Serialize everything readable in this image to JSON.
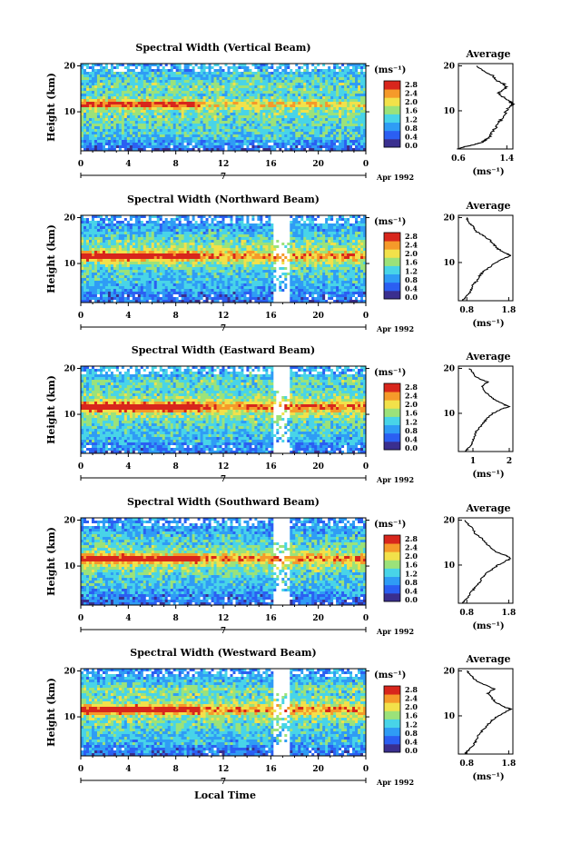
{
  "figure": {
    "xlabel": "Local Time",
    "date_label": "Apr 1992",
    "day_label": "7",
    "unit": "(ms⁻¹)",
    "ylabel": "Height (km)",
    "profile_title": "Average",
    "profile_unit": "(ms⁻¹)",
    "colorbar_ticks": [
      "0.0",
      "0.4",
      "0.8",
      "1.2",
      "1.6",
      "2.0",
      "2.4",
      "2.8"
    ],
    "colors": {
      "colormap": [
        "#3a2f8f",
        "#2b5ff2",
        "#2f9cf5",
        "#48d4e8",
        "#9be27a",
        "#f2e14a",
        "#f59a2a",
        "#d8261c"
      ],
      "missing": "#ffffff"
    }
  },
  "chart_data": [
    {
      "type": "heatmap",
      "title": "Spectral Width (Vertical Beam)",
      "x_ticks": [
        "0",
        "4",
        "8",
        "12",
        "16",
        "20",
        "0"
      ],
      "y_ticks": [
        "20",
        "10"
      ],
      "xlim": [
        0,
        24
      ],
      "ylim": [
        1.5,
        20.5
      ],
      "value_range": [
        0,
        3.0
      ],
      "profile": {
        "title": "Average",
        "x_ticks": [
          "0.6",
          "1.4"
        ],
        "xlim": [
          0.6,
          1.5
        ],
        "heights": [
          1.5,
          2,
          2.5,
          3,
          3.5,
          4,
          5,
          6,
          7,
          8,
          9,
          10,
          11,
          11.5,
          12,
          13,
          14,
          15,
          16,
          17,
          18,
          19,
          20
        ],
        "values": [
          0.6,
          0.7,
          0.85,
          1.0,
          1.05,
          1.1,
          1.15,
          1.2,
          1.25,
          1.3,
          1.35,
          1.4,
          1.45,
          1.5,
          1.45,
          1.35,
          1.25,
          1.4,
          1.35,
          1.2,
          1.15,
          1.0,
          0.9
        ]
      }
    },
    {
      "type": "heatmap",
      "title": "Spectral Width (Northward Beam)",
      "x_ticks": [
        "0",
        "4",
        "8",
        "12",
        "16",
        "20",
        "0"
      ],
      "y_ticks": [
        "20",
        "10"
      ],
      "xlim": [
        0,
        24
      ],
      "ylim": [
        1.5,
        20.5
      ],
      "value_range": [
        0,
        3.0
      ],
      "profile": {
        "title": "Average",
        "x_ticks": [
          "0.8",
          "1.8"
        ],
        "xlim": [
          0.6,
          1.9
        ],
        "heights": [
          1.5,
          2,
          3,
          4,
          5,
          6,
          7,
          8,
          9,
          10,
          11,
          11.5,
          12,
          13,
          14,
          15,
          16,
          17,
          18,
          19,
          20
        ],
        "values": [
          0.7,
          0.75,
          0.85,
          0.9,
          0.95,
          1.05,
          1.1,
          1.2,
          1.35,
          1.5,
          1.7,
          1.85,
          1.75,
          1.55,
          1.45,
          1.35,
          1.2,
          1.0,
          0.95,
          0.85,
          0.8
        ]
      }
    },
    {
      "type": "heatmap",
      "title": "Spectral Width (Eastward Beam)",
      "x_ticks": [
        "0",
        "4",
        "8",
        "12",
        "16",
        "20",
        "0"
      ],
      "y_ticks": [
        "20",
        "10"
      ],
      "xlim": [
        0,
        24
      ],
      "ylim": [
        1.5,
        20.5
      ],
      "value_range": [
        0,
        3.0
      ],
      "profile": {
        "title": "Average",
        "x_ticks": [
          "1",
          "2"
        ],
        "xlim": [
          0.6,
          2.1
        ],
        "heights": [
          1.5,
          2,
          3,
          4,
          5,
          6,
          7,
          8,
          9,
          10,
          11,
          11.5,
          12,
          13,
          14,
          15,
          16,
          17,
          18,
          19,
          20
        ],
        "values": [
          0.8,
          0.85,
          0.95,
          1.0,
          1.05,
          1.1,
          1.2,
          1.3,
          1.4,
          1.55,
          1.8,
          2.0,
          1.85,
          1.6,
          1.45,
          1.3,
          1.25,
          1.4,
          1.1,
          1.0,
          0.9
        ]
      }
    },
    {
      "type": "heatmap",
      "title": "Spectral Width (Southward Beam)",
      "x_ticks": [
        "0",
        "4",
        "8",
        "12",
        "16",
        "20",
        "0"
      ],
      "y_ticks": [
        "20",
        "10"
      ],
      "xlim": [
        0,
        24
      ],
      "ylim": [
        1.5,
        20.5
      ],
      "value_range": [
        0,
        3.0
      ],
      "profile": {
        "title": "Average",
        "x_ticks": [
          "0.8",
          "1.8"
        ],
        "xlim": [
          0.6,
          1.9
        ],
        "heights": [
          1.5,
          2,
          3,
          4,
          5,
          6,
          7,
          8,
          9,
          10,
          11,
          11.5,
          12,
          13,
          14,
          15,
          16,
          17,
          18,
          19,
          20
        ],
        "values": [
          0.7,
          0.75,
          0.85,
          0.9,
          1.0,
          1.1,
          1.15,
          1.25,
          1.4,
          1.55,
          1.75,
          1.85,
          1.75,
          1.5,
          1.35,
          1.25,
          1.15,
          1.0,
          0.95,
          0.85,
          0.75
        ]
      }
    },
    {
      "type": "heatmap",
      "title": "Spectral Width (Westward Beam)",
      "x_ticks": [
        "0",
        "4",
        "8",
        "12",
        "16",
        "20",
        "0"
      ],
      "y_ticks": [
        "20",
        "10"
      ],
      "xlim": [
        0,
        24
      ],
      "ylim": [
        1.5,
        20.5
      ],
      "value_range": [
        0,
        3.0
      ],
      "profile": {
        "title": "Average",
        "x_ticks": [
          "0.8",
          "1.8"
        ],
        "xlim": [
          0.6,
          1.9
        ],
        "heights": [
          1.5,
          2,
          3,
          4,
          5,
          6,
          7,
          8,
          9,
          10,
          11,
          11.5,
          12,
          13,
          14,
          15,
          16,
          17,
          18,
          19,
          20
        ],
        "values": [
          0.75,
          0.8,
          0.9,
          1.0,
          1.05,
          1.1,
          1.2,
          1.3,
          1.4,
          1.55,
          1.75,
          1.85,
          1.7,
          1.5,
          1.4,
          1.3,
          1.45,
          1.2,
          1.0,
          0.9,
          0.8
        ]
      }
    }
  ]
}
